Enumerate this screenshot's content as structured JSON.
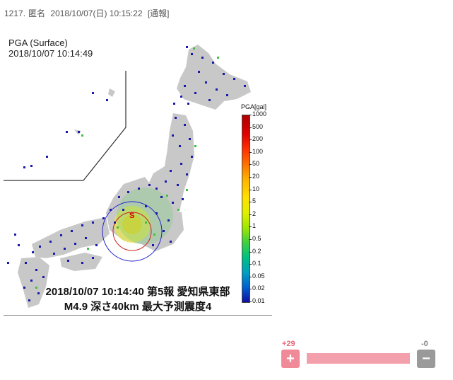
{
  "post": {
    "number": "1217.",
    "author": "匿名",
    "datetime": "2018/10/07(日) 10:15:22",
    "report": "[通報]"
  },
  "map": {
    "pga_title": "PGA (Surface)",
    "pga_time": "2018/10/07 10:14:49",
    "legend_title": "PGA[gal]",
    "legend_labels": [
      "1000",
      "500",
      "200",
      "100",
      "50",
      "20",
      "10",
      "5",
      "2",
      "1",
      "0.5",
      "0.2",
      "0.1",
      "0.05",
      "0.02",
      "0.01"
    ],
    "caption_line1": "2018/10/07 10:14:40 第5報 愛知県東部",
    "caption_line2": "M4.9 深さ40km 最大予測震度4",
    "epicenter_mark": "S"
  },
  "votes": {
    "plus_count": "+29",
    "minus_count": "-0",
    "plus_label": "+",
    "minus_label": "−",
    "plus_ratio": 1.0
  },
  "colors": {
    "plus": "#f08a98",
    "minus": "#9a9a9a",
    "station_blue": "#1a1aa8",
    "land_gray": "#c8c8c8"
  }
}
